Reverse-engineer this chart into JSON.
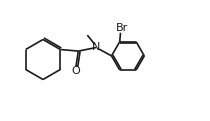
{
  "bg_color": "#ffffff",
  "line_color": "#1a1a1a",
  "line_width": 1.2,
  "font_size_label": 8.0,
  "font_size_br": 8.0,
  "figsize": [
    2.1,
    1.21
  ],
  "dpi": 100,
  "xlim": [
    0,
    10.5
  ],
  "ylim": [
    0,
    6.0
  ]
}
